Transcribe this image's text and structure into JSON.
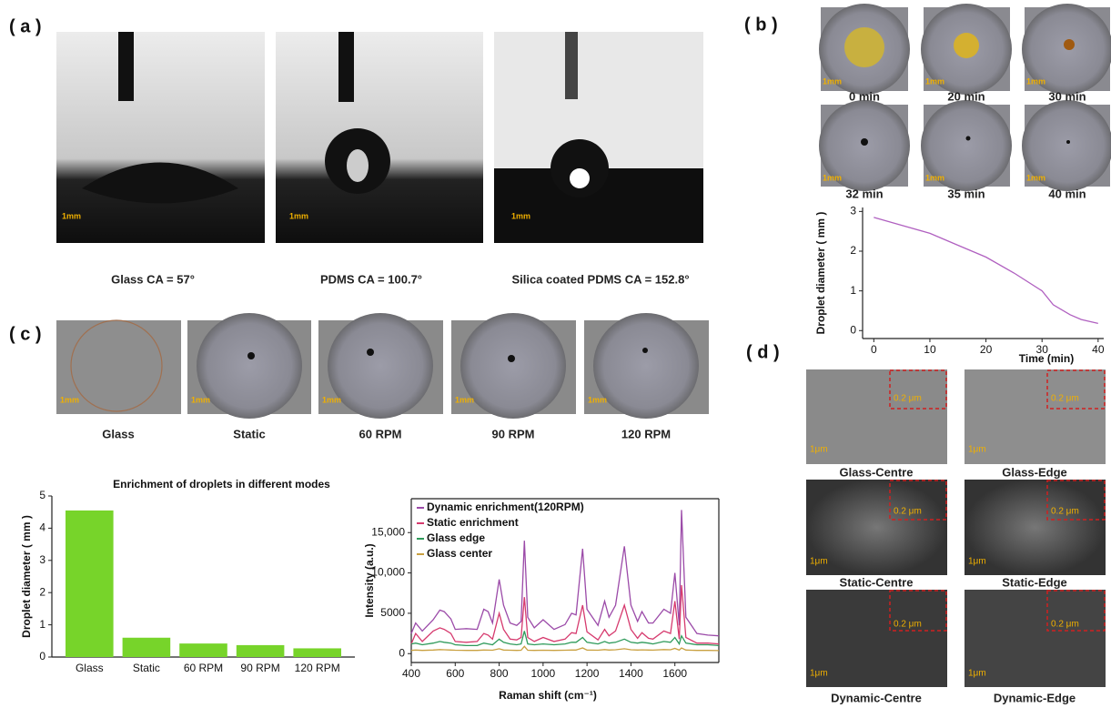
{
  "panels": {
    "a": "( a )",
    "b": "( b )",
    "c": "( c )",
    "d": "( d )"
  },
  "panel_a": {
    "captions": [
      "Glass  CA = 57°",
      "PDMS CA = 100.7°",
      "Silica coated  PDMS CA = 152.8°"
    ],
    "scale": "1mm"
  },
  "panel_b": {
    "times": [
      "0 min",
      "20 min",
      "30 min",
      "32 min",
      "35 min",
      "40 min"
    ],
    "scale": "1mm"
  },
  "panel_c": {
    "labels": [
      "Glass",
      "Static",
      "60 RPM",
      "90 RPM",
      "120 RPM"
    ],
    "scale": "1mm"
  },
  "panel_d": {
    "labels": [
      "Glass-Centre",
      "Glass-Edge",
      "Static-Centre",
      "Static-Edge",
      "Dynamic-Centre",
      "Dynamic-Edge"
    ],
    "inset_scale": "0.2 μm",
    "scale": "1μm"
  },
  "chart_data": [
    {
      "type": "line",
      "ylabel": "Droplet diameter ( mm )",
      "xlabel": "Time (min)",
      "x": [
        0,
        5,
        10,
        15,
        20,
        25,
        30,
        32,
        35,
        37,
        40
      ],
      "values": [
        2.85,
        2.65,
        2.45,
        2.15,
        1.85,
        1.45,
        1.0,
        0.65,
        0.4,
        0.28,
        0.18
      ],
      "color": "#b060c0",
      "xlim": [
        -2,
        41
      ],
      "ylim": [
        -0.2,
        3.1
      ],
      "xticks": [
        0,
        10,
        20,
        30,
        40
      ],
      "yticks": [
        0,
        1,
        2,
        3
      ]
    },
    {
      "type": "bar",
      "title": "Enrichment of droplets in different modes",
      "ylabel": "Droplet diameter ( mm )",
      "categories": [
        "Glass",
        "Static",
        "60 RPM",
        "90 RPM",
        "120 RPM"
      ],
      "values": [
        4.55,
        0.6,
        0.42,
        0.37,
        0.27
      ],
      "color": "#77d42a",
      "ylim": [
        0,
        5
      ],
      "yticks": [
        0,
        1,
        2,
        3,
        4,
        5
      ]
    },
    {
      "type": "line",
      "xlabel": "Raman shift (cm⁻¹)",
      "ylabel": "Intensity (a.u.)",
      "legend": "upper left",
      "x": [
        400,
        420,
        450,
        500,
        530,
        550,
        580,
        600,
        650,
        700,
        730,
        750,
        770,
        800,
        820,
        850,
        880,
        900,
        915,
        930,
        960,
        1000,
        1050,
        1100,
        1130,
        1150,
        1180,
        1200,
        1250,
        1280,
        1300,
        1330,
        1370,
        1400,
        1430,
        1450,
        1480,
        1500,
        1550,
        1580,
        1600,
        1620,
        1630,
        1650,
        1700,
        1750,
        1800
      ],
      "series": [
        {
          "name": "Dynamic enrichment(120RPM)",
          "color": "#9b4aa8",
          "values": [
            2500,
            3800,
            2800,
            4200,
            5400,
            5200,
            4300,
            3000,
            3100,
            3000,
            5500,
            5200,
            3800,
            9200,
            6000,
            3800,
            3500,
            4000,
            14000,
            4500,
            3200,
            4200,
            3000,
            3600,
            5000,
            4800,
            13000,
            5500,
            3500,
            6500,
            4500,
            6000,
            13300,
            6000,
            4000,
            5200,
            3800,
            3800,
            5500,
            5000,
            10000,
            3500,
            17800,
            4500,
            2500,
            2300,
            2200
          ]
        },
        {
          "name": "Static enrichment",
          "color": "#d63a6e",
          "values": [
            1200,
            2500,
            1500,
            2800,
            3200,
            3000,
            2500,
            1500,
            1400,
            1500,
            2500,
            2300,
            1800,
            5000,
            3000,
            1800,
            1700,
            2000,
            7000,
            2000,
            1500,
            2000,
            1500,
            1800,
            2600,
            2500,
            6000,
            2700,
            1700,
            3000,
            2200,
            2800,
            6000,
            3000,
            1900,
            2600,
            1900,
            1800,
            2800,
            2500,
            6500,
            1800,
            8500,
            2000,
            1300,
            1300,
            1200
          ]
        },
        {
          "name": "Glass edge",
          "color": "#2e9a5a",
          "values": [
            1200,
            1300,
            1100,
            1300,
            1500,
            1400,
            1300,
            1100,
            1000,
            1000,
            1300,
            1200,
            1100,
            1800,
            1400,
            1200,
            1100,
            1200,
            2800,
            1200,
            1100,
            1200,
            1100,
            1200,
            1400,
            1400,
            2000,
            1400,
            1200,
            1500,
            1300,
            1400,
            1800,
            1400,
            1300,
            1400,
            1300,
            1200,
            1500,
            1400,
            2000,
            1200,
            2200,
            1300,
            1100,
            1100,
            1000
          ]
        },
        {
          "name": "Glass center",
          "color": "#c9a040",
          "values": [
            400,
            450,
            400,
            450,
            500,
            480,
            450,
            420,
            400,
            400,
            450,
            430,
            420,
            600,
            450,
            420,
            400,
            420,
            900,
            420,
            400,
            420,
            400,
            420,
            450,
            450,
            700,
            450,
            420,
            500,
            450,
            480,
            600,
            480,
            450,
            470,
            440,
            430,
            500,
            480,
            650,
            430,
            700,
            450,
            400,
            400,
            380
          ]
        }
      ],
      "xlim": [
        400,
        1800
      ],
      "ylim": [
        -1100,
        19200
      ],
      "xticks": [
        400,
        600,
        800,
        1000,
        1200,
        1400,
        1600
      ],
      "yticks": [
        0,
        5000,
        {
          "value": 10000,
          "label": "10,000"
        },
        {
          "value": 15000,
          "label": "15,000"
        }
      ]
    }
  ]
}
